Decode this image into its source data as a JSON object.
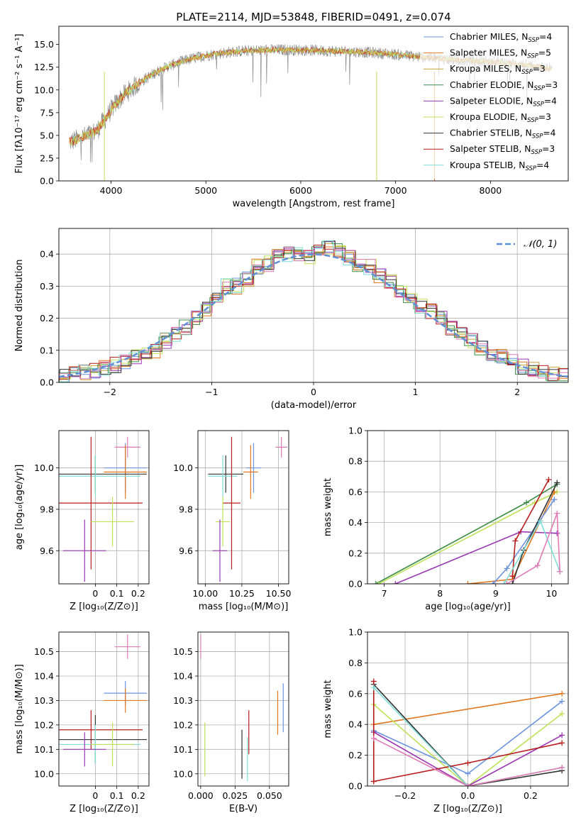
{
  "colors": {
    "grid": "#b0b0b0",
    "gauss": "#5f8fd6",
    "series": {
      "chabrier_miles": "#6b93de",
      "salpeter_miles": "#e0761e",
      "kroupa_miles": "#c9a23a",
      "chabrier_elodie": "#3c8c47",
      "salpeter_elodie": "#9a3ab3",
      "kroupa_elodie": "#bfe25a",
      "chabrier_stelib": "#333333",
      "salpeter_stelib": "#b81c1c",
      "kroupa_stelib": "#7fdcd6",
      "pink": "#e07ab5",
      "spectrum_gray": "#7f7f7f"
    }
  },
  "chart_data": [
    {
      "id": "spectrum",
      "type": "line",
      "title": "PLATE=2114, MJD=53848, FIBERID=0491, z=0.074",
      "xlabel": "wavelength [Angstrom, rest frame]",
      "ylabel": "Flux [fλ10⁻¹⁷ erg cm⁻² s⁻¹ A⁻¹]",
      "xlim": [
        3450,
        8820
      ],
      "ylim": [
        0,
        17
      ],
      "xticks": [
        4000,
        5000,
        6000,
        7000,
        8000
      ],
      "yticks": [
        0.0,
        2.5,
        5.0,
        7.5,
        10.0,
        12.5,
        15.0
      ],
      "continuum": {
        "x": [
          3550,
          3700,
          3850,
          3950,
          4050,
          4150,
          4300,
          4450,
          4600,
          4800,
          5000,
          5200,
          5400,
          5700,
          6000,
          6300,
          6600,
          6900,
          7200,
          7500,
          7800,
          8100,
          8400,
          8600
        ],
        "y": [
          4.2,
          4.8,
          5.5,
          7.0,
          8.5,
          9.6,
          10.8,
          11.8,
          12.6,
          13.3,
          13.8,
          14.1,
          14.3,
          14.4,
          14.4,
          14.3,
          14.2,
          14.0,
          13.7,
          13.4,
          13.2,
          13.0,
          12.7,
          12.4
        ]
      },
      "legend_position": "upper right",
      "legend": [
        {
          "label": "Chabrier MILES, N",
          "sub": "SSP",
          "value": "=4",
          "key": "chabrier_miles"
        },
        {
          "label": "Salpeter MILES, N",
          "sub": "SSP",
          "value": "=5",
          "key": "salpeter_miles"
        },
        {
          "label": "Kroupa MILES, N",
          "sub": "SSP",
          "value": "=3",
          "key": "kroupa_miles"
        },
        {
          "label": "Chabrier ELODIE, N",
          "sub": "SSP",
          "value": "=3",
          "key": "chabrier_elodie"
        },
        {
          "label": "Salpeter ELODIE, N",
          "sub": "SSP",
          "value": "=4",
          "key": "salpeter_elodie"
        },
        {
          "label": "Kroupa ELODIE, N",
          "sub": "SSP",
          "value": "=3",
          "key": "kroupa_elodie"
        },
        {
          "label": "Chabrier STELIB, N",
          "sub": "SSP",
          "value": "=4",
          "key": "chabrier_stelib"
        },
        {
          "label": "Salpeter STELIB, N",
          "sub": "SSP",
          "value": "=3",
          "key": "salpeter_stelib"
        },
        {
          "label": "Kroupa STELIB, N",
          "sub": "SSP",
          "value": "=4",
          "key": "kroupa_stelib"
        }
      ]
    },
    {
      "id": "residuals",
      "type": "line",
      "xlabel": "(data-model)/error",
      "ylabel": "Normed distribution",
      "xlim": [
        -2.5,
        2.5
      ],
      "ylim": [
        0,
        0.48
      ],
      "xticks": [
        -2,
        -1,
        0,
        1,
        2
      ],
      "xtick_labels": [
        "−2",
        "−1",
        "0",
        "1",
        "2"
      ],
      "yticks": [
        0.0,
        0.1,
        0.2,
        0.3,
        0.4
      ],
      "grid": true,
      "legend": "𝒩(0, 1)",
      "legend_position": "upper right",
      "histogram_bins": {
        "x": [
          -2.5,
          -2.4,
          -2.3,
          -2.2,
          -2.1,
          -2.0,
          -1.9,
          -1.8,
          -1.7,
          -1.6,
          -1.5,
          -1.4,
          -1.3,
          -1.2,
          -1.1,
          -1.0,
          -0.9,
          -0.8,
          -0.7,
          -0.6,
          -0.5,
          -0.4,
          -0.3,
          -0.2,
          -0.1,
          0.0,
          0.1,
          0.2,
          0.3,
          0.4,
          0.5,
          0.6,
          0.7,
          0.8,
          0.9,
          1.0,
          1.1,
          1.2,
          1.3,
          1.4,
          1.5,
          1.6,
          1.7,
          1.8,
          1.9,
          2.0,
          2.1,
          2.2,
          2.3,
          2.4
        ],
        "y": [
          0.02,
          0.025,
          0.03,
          0.038,
          0.045,
          0.055,
          0.065,
          0.08,
          0.09,
          0.1,
          0.13,
          0.15,
          0.17,
          0.2,
          0.23,
          0.27,
          0.3,
          0.3,
          0.32,
          0.36,
          0.37,
          0.39,
          0.4,
          0.4,
          0.39,
          0.42,
          0.42,
          0.41,
          0.39,
          0.37,
          0.36,
          0.33,
          0.31,
          0.29,
          0.27,
          0.24,
          0.22,
          0.2,
          0.17,
          0.15,
          0.13,
          0.11,
          0.09,
          0.08,
          0.065,
          0.05,
          0.04,
          0.033,
          0.027,
          0.02
        ]
      }
    },
    {
      "id": "age_vs_Z",
      "type": "scatter",
      "xlabel": "Z [log₁₀(Z/Z⊙)]",
      "ylabel": "age  [log₁₀(age/yr)]",
      "xlim": [
        -0.17,
        0.25
      ],
      "ylim": [
        9.44,
        10.18
      ],
      "xticks": [
        0.0,
        0.1,
        0.2
      ],
      "yticks": [
        9.6,
        9.8,
        10.0
      ],
      "points": [
        {
          "key": "pink",
          "x": 0.15,
          "y": 10.1,
          "xerr": 0.06,
          "yerr": 0.05
        },
        {
          "key": "chabrier_miles",
          "x": 0.14,
          "y": 10.0,
          "xerr": 0.1,
          "yerr": 0.12
        },
        {
          "key": "salpeter_miles",
          "x": 0.14,
          "y": 9.98,
          "xerr": 0.1,
          "yerr": 0.13
        },
        {
          "key": "chabrier_stelib",
          "x": 0.0,
          "y": 9.97,
          "xerr": 0.24,
          "yerr": 0.09
        },
        {
          "key": "kroupa_stelib",
          "x": 0.0,
          "y": 9.96,
          "xerr": 0.21,
          "yerr": 0.1
        },
        {
          "key": "salpeter_stelib",
          "x": -0.02,
          "y": 9.83,
          "xerr": 0.24,
          "yerr": 0.32
        },
        {
          "key": "kroupa_elodie",
          "x": 0.08,
          "y": 9.74,
          "xerr": 0.1,
          "yerr": 0.12
        },
        {
          "key": "salpeter_elodie",
          "x": -0.05,
          "y": 9.6,
          "xerr": 0.1,
          "yerr": 0.15
        }
      ]
    },
    {
      "id": "age_vs_mass",
      "type": "scatter",
      "xlabel": "mass [log₁₀(M/M⊙)]",
      "xlim": [
        9.95,
        10.57
      ],
      "ylim": [
        9.44,
        10.18
      ],
      "xticks": [
        10.0,
        10.25,
        10.5
      ],
      "xtick_labels": [
        "10.00",
        "10.25",
        "10.50"
      ],
      "yticks": [
        9.6,
        9.8,
        10.0
      ],
      "points": [
        {
          "key": "pink",
          "x": 10.52,
          "y": 10.1,
          "xerr": 0.04,
          "yerr": 0.05
        },
        {
          "key": "chabrier_miles",
          "x": 10.33,
          "y": 10.0,
          "xerr": 0.05,
          "yerr": 0.12
        },
        {
          "key": "salpeter_miles",
          "x": 10.31,
          "y": 9.98,
          "xerr": 0.05,
          "yerr": 0.13
        },
        {
          "key": "chabrier_stelib",
          "x": 10.14,
          "y": 9.97,
          "xerr": 0.12,
          "yerr": 0.09
        },
        {
          "key": "kroupa_stelib",
          "x": 10.12,
          "y": 9.96,
          "xerr": 0.1,
          "yerr": 0.1
        },
        {
          "key": "salpeter_stelib",
          "x": 10.18,
          "y": 9.83,
          "xerr": 0.06,
          "yerr": 0.32
        },
        {
          "key": "kroupa_elodie",
          "x": 10.12,
          "y": 9.74,
          "xerr": 0.05,
          "yerr": 0.12
        },
        {
          "key": "salpeter_elodie",
          "x": 10.1,
          "y": 9.6,
          "xerr": 0.05,
          "yerr": 0.15
        }
      ]
    },
    {
      "id": "mass_weight_vs_age",
      "type": "line",
      "xlabel": "age  [log₁₀(age/yr)]",
      "ylabel": "mass weight",
      "xlim": [
        6.7,
        10.3
      ],
      "ylim": [
        0.0,
        1.0
      ],
      "xticks": [
        7,
        8,
        9,
        10
      ],
      "yticks": [
        0.0,
        0.2,
        0.4,
        0.6,
        0.8,
        1.0
      ],
      "yticklabels": [
        "0.0",
        "0.2",
        "0.4",
        "0.6",
        "0.8",
        "1.0"
      ],
      "grid": true,
      "series": [
        {
          "key": "chabrier_elodie",
          "x": [
            6.85,
            9.55,
            10.1
          ],
          "y": [
            0.0,
            0.53,
            0.65
          ]
        },
        {
          "key": "kroupa_elodie",
          "x": [
            6.9,
            9.7,
            10.1
          ],
          "y": [
            0.0,
            0.53,
            0.6
          ]
        },
        {
          "key": "salpeter_elodie",
          "x": [
            7.2,
            9.45,
            10.1
          ],
          "y": [
            0.0,
            0.34,
            0.33
          ]
        },
        {
          "key": "salpeter_miles",
          "x": [
            8.5,
            9.3,
            10.05
          ],
          "y": [
            0.0,
            0.03,
            0.6
          ]
        },
        {
          "key": "chabrier_miles",
          "x": [
            8.95,
            9.2,
            10.05
          ],
          "y": [
            0.0,
            0.1,
            0.55
          ]
        },
        {
          "key": "chabrier_stelib",
          "x": [
            9.3,
            9.5,
            10.1
          ],
          "y": [
            0.0,
            0.22,
            0.66
          ]
        },
        {
          "key": "salpeter_stelib",
          "x": [
            9.3,
            9.35,
            9.95
          ],
          "y": [
            0.05,
            0.28,
            0.68
          ]
        },
        {
          "key": "kroupa_stelib",
          "x": [
            9.15,
            9.8,
            10.15
          ],
          "y": [
            0.0,
            0.41,
            0.08
          ]
        },
        {
          "key": "pink",
          "x": [
            9.2,
            9.75,
            10.1,
            10.15
          ],
          "y": [
            0.0,
            0.12,
            0.46,
            0.08
          ]
        }
      ]
    },
    {
      "id": "mass_vs_Z",
      "type": "scatter",
      "xlabel": "Z [log₁₀(Z/Z⊙)]",
      "ylabel": "mass [log₁₀(M/M⊙)]",
      "xlim": [
        -0.17,
        0.25
      ],
      "ylim": [
        9.95,
        10.58
      ],
      "xticks": [
        0.0,
        0.1,
        0.2
      ],
      "yticks": [
        10.0,
        10.1,
        10.2,
        10.3,
        10.4,
        10.5
      ],
      "points": [
        {
          "key": "pink",
          "x": 0.15,
          "y": 10.52,
          "xerr": 0.06,
          "yerr": 0.05
        },
        {
          "key": "chabrier_miles",
          "x": 0.14,
          "y": 10.33,
          "xerr": 0.1,
          "yerr": 0.05
        },
        {
          "key": "salpeter_miles",
          "x": 0.14,
          "y": 10.3,
          "xerr": 0.1,
          "yerr": 0.05
        },
        {
          "key": "salpeter_stelib",
          "x": -0.02,
          "y": 10.18,
          "xerr": 0.24,
          "yerr": 0.08
        },
        {
          "key": "chabrier_stelib",
          "x": 0.0,
          "y": 10.14,
          "xerr": 0.24,
          "yerr": 0.1
        },
        {
          "key": "kroupa_stelib",
          "x": 0.0,
          "y": 10.12,
          "xerr": 0.21,
          "yerr": 0.08
        },
        {
          "key": "kroupa_elodie",
          "x": 0.08,
          "y": 10.12,
          "xerr": 0.1,
          "yerr": 0.09
        },
        {
          "key": "salpeter_elodie",
          "x": -0.05,
          "y": 10.1,
          "xerr": 0.1,
          "yerr": 0.07
        }
      ]
    },
    {
      "id": "mass_vs_ebv",
      "type": "scatter",
      "xlabel": "E(B-V)",
      "xlim": [
        -0.002,
        0.064
      ],
      "ylim": [
        9.95,
        10.58
      ],
      "xticks": [
        0.0,
        0.025,
        0.05
      ],
      "xtick_labels": [
        "0.000",
        "0.025",
        "0.050"
      ],
      "yticks": [
        10.0,
        10.1,
        10.2,
        10.3,
        10.4,
        10.5
      ],
      "points": [
        {
          "key": "pink",
          "x": 0.0,
          "y": 10.52,
          "yerr": 0.05
        },
        {
          "key": "chabrier_miles",
          "x": 0.06,
          "y": 10.27,
          "yerr": 0.1
        },
        {
          "key": "salpeter_miles",
          "x": 0.056,
          "y": 10.25,
          "yerr": 0.09
        },
        {
          "key": "salpeter_stelib",
          "x": 0.035,
          "y": 10.17,
          "yerr": 0.09
        },
        {
          "key": "chabrier_stelib",
          "x": 0.03,
          "y": 10.08,
          "yerr": 0.1
        },
        {
          "key": "kroupa_stelib",
          "x": 0.034,
          "y": 10.06,
          "yerr": 0.09
        },
        {
          "key": "kroupa_elodie",
          "x": 0.003,
          "y": 10.1,
          "yerr": 0.11
        }
      ]
    },
    {
      "id": "mass_weight_vs_Z",
      "type": "line",
      "xlabel": "Z [log₁₀(Z/Z⊙)]",
      "ylabel": "mass weight",
      "xlim": [
        -0.32,
        0.32
      ],
      "ylim": [
        0.0,
        1.0
      ],
      "xticks": [
        -0.2,
        0.0,
        0.2
      ],
      "xtick_labels": [
        "−0.2",
        "0.0",
        "0.2"
      ],
      "yticks": [
        0.0,
        0.2,
        0.4,
        0.6,
        0.8,
        1.0
      ],
      "yticklabels": [
        "0.0",
        "0.2",
        "0.4",
        "0.6",
        "0.8",
        "1.0"
      ],
      "grid": true,
      "series": [
        {
          "key": "salpeter_miles",
          "x": [
            -0.3,
            0.3
          ],
          "y": [
            0.4,
            0.6
          ]
        },
        {
          "key": "chabrier_miles",
          "x": [
            -0.3,
            0.0,
            0.3
          ],
          "y": [
            0.36,
            0.08,
            0.55
          ]
        },
        {
          "key": "chabrier_stelib",
          "x": [
            -0.3,
            0.0,
            0.3
          ],
          "y": [
            0.66,
            0.0,
            0.1
          ]
        },
        {
          "key": "kroupa_elodie",
          "x": [
            -0.3,
            0.0,
            0.3
          ],
          "y": [
            0.53,
            0.0,
            0.47
          ]
        },
        {
          "key": "salpeter_elodie",
          "x": [
            -0.3,
            0.0,
            0.3
          ],
          "y": [
            0.35,
            0.0,
            0.33
          ]
        },
        {
          "key": "salpeter_stelib",
          "x": [
            -0.3,
            0.0,
            0.3
          ],
          "y": [
            0.03,
            0.15,
            0.28
          ]
        },
        {
          "key": "salpeter_stelib",
          "x": [
            -0.3,
            -0.3
          ],
          "y": [
            0.68,
            0.03
          ]
        },
        {
          "key": "kroupa_stelib",
          "x": [
            -0.3,
            0.0,
            0.3
          ],
          "y": [
            0.64,
            0.0,
            0.12
          ]
        },
        {
          "key": "pink",
          "x": [
            -0.3,
            0.0,
            0.3
          ],
          "y": [
            0.31,
            0.0,
            0.12
          ]
        }
      ]
    }
  ]
}
